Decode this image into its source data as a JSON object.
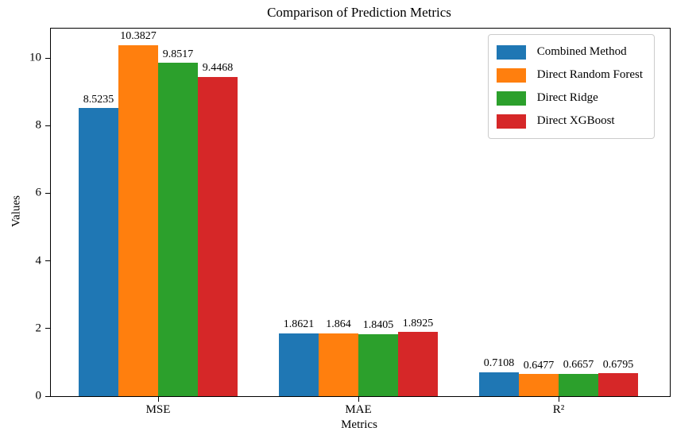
{
  "chart_data": {
    "type": "bar",
    "title": "Comparison of Prediction Metrics",
    "xlabel": "Metrics",
    "ylabel": "Values",
    "categories": [
      "MSE",
      "MAE",
      "R²"
    ],
    "series": [
      {
        "name": "Combined Method",
        "color": "#1f77b4",
        "values": [
          8.5235,
          1.8621,
          0.7108
        ],
        "labels": [
          "8.5235",
          "1.8621",
          "0.7108"
        ]
      },
      {
        "name": "Direct Random Forest",
        "color": "#ff7f0e",
        "values": [
          10.3827,
          1.864,
          0.6477
        ],
        "labels": [
          "10.3827",
          "1.864",
          "0.6477"
        ]
      },
      {
        "name": "Direct Ridge",
        "color": "#2ca02c",
        "values": [
          9.8517,
          1.8405,
          0.6657
        ],
        "labels": [
          "9.8517",
          "1.8405",
          "0.6657"
        ]
      },
      {
        "name": "Direct XGBoost",
        "color": "#d62728",
        "values": [
          9.4468,
          1.8925,
          0.6795
        ],
        "labels": [
          "9.4468",
          "1.8925",
          "0.6795"
        ]
      }
    ],
    "yticks": [
      0,
      2,
      4,
      6,
      8,
      10
    ],
    "ylim": [
      0,
      10.87
    ],
    "legend_position": "upper right",
    "grid": false,
    "axis_color": "#000000",
    "background_color": "#ffffff"
  }
}
